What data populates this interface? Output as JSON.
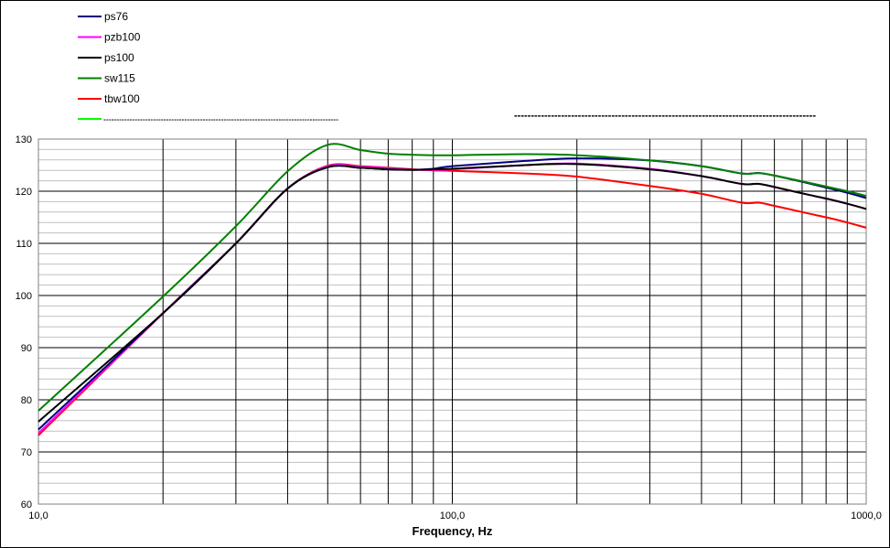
{
  "chart_data": {
    "type": "line",
    "title": "",
    "xlabel": "Frequency, Hz",
    "ylabel": "",
    "x_scale": "log",
    "xlim": [
      10,
      1000
    ],
    "ylim": [
      60,
      130
    ],
    "grid": true,
    "legend_position": "top-left",
    "x_tick_labels": [
      "10,0",
      "100,0",
      "1000,0"
    ],
    "y_tick_labels": [
      "60",
      "70",
      "80",
      "90",
      "100",
      "110",
      "120",
      "130"
    ],
    "series": [
      {
        "name": "ps76",
        "color": "#000080",
        "x": [
          10,
          20,
          30,
          40,
          50,
          60,
          70,
          80,
          90,
          100,
          150,
          200,
          300,
          400,
          500,
          550,
          600,
          700,
          800,
          900,
          1000
        ],
        "y": [
          74.3,
          96.6,
          110.0,
          120.5,
          124.6,
          124.5,
          124.2,
          124.1,
          124.3,
          124.8,
          125.8,
          126.3,
          125.9,
          124.8,
          123.4,
          123.5,
          123.0,
          121.8,
          120.7,
          119.7,
          118.7
        ]
      },
      {
        "name": "pzb100",
        "color": "#ff00ff",
        "x": [
          10,
          20,
          30,
          40,
          50,
          60,
          70,
          80,
          90,
          100,
          150,
          200,
          300,
          400,
          500,
          550,
          600,
          700,
          800,
          900,
          1000
        ],
        "y": [
          73.6,
          96.6,
          110.0,
          120.5,
          124.8,
          124.7,
          124.4,
          124.1,
          124.1,
          124.2,
          125.0,
          125.3,
          124.3,
          122.9,
          121.4,
          121.4,
          120.8,
          119.6,
          118.6,
          117.6,
          116.6
        ]
      },
      {
        "name": "ps100",
        "color": "#000000",
        "x": [
          10,
          20,
          30,
          40,
          50,
          60,
          70,
          80,
          90,
          100,
          150,
          200,
          300,
          400,
          500,
          550,
          600,
          700,
          800,
          900,
          1000
        ],
        "y": [
          75.8,
          96.6,
          110.0,
          120.5,
          124.6,
          124.5,
          124.2,
          124.1,
          124.2,
          124.3,
          125.0,
          125.2,
          124.2,
          122.9,
          121.4,
          121.4,
          120.8,
          119.6,
          118.6,
          117.6,
          116.6
        ]
      },
      {
        "name": "sw115",
        "color": "#008000",
        "x": [
          10,
          20,
          30,
          40,
          50,
          60,
          70,
          80,
          90,
          100,
          150,
          200,
          300,
          400,
          500,
          550,
          600,
          700,
          800,
          900,
          1000
        ],
        "y": [
          77.9,
          99.8,
          113.3,
          123.8,
          128.9,
          127.9,
          127.2,
          127.0,
          126.9,
          126.9,
          127.1,
          126.9,
          125.9,
          124.8,
          123.4,
          123.5,
          123.0,
          121.9,
          120.9,
          120.0,
          119.1
        ]
      },
      {
        "name": "tbw100",
        "color": "#ff0000",
        "x": [
          10,
          20,
          30,
          40,
          50,
          60,
          70,
          80,
          90,
          100,
          150,
          200,
          300,
          400,
          500,
          550,
          600,
          700,
          800,
          900,
          1000
        ],
        "y": [
          73.2,
          96.6,
          110.0,
          120.5,
          124.9,
          124.8,
          124.5,
          124.2,
          124.0,
          123.9,
          123.4,
          122.8,
          121.0,
          119.5,
          117.8,
          117.8,
          117.2,
          116.0,
          115.0,
          114.0,
          113.0
        ]
      }
    ]
  },
  "legend_extra_dashes": "------------------------------------------------------------------------------------------"
}
